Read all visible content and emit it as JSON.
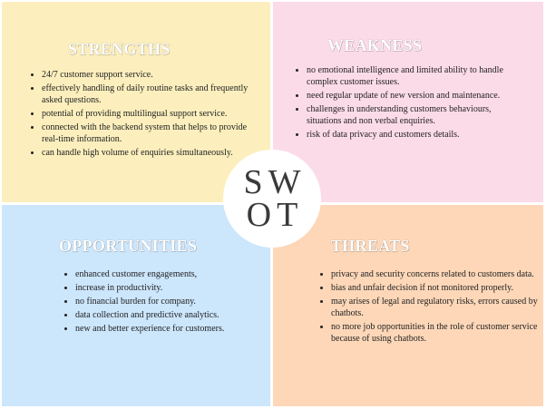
{
  "center": {
    "line1": "SW",
    "line2": "OT"
  },
  "strengths": {
    "title": "STRENGTHS",
    "items": [
      "24/7 customer support service.",
      "effectively handling of daily routine tasks and frequently asked questions.",
      "potential of providing multilingual support service.",
      "connected with the backend system that helps to provide real-time information.",
      "can handle high volume of enquiries simultaneously."
    ]
  },
  "weakness": {
    "title": "WEAKNESS",
    "items": [
      "no emotional intelligence and limited ability to handle complex customer issues.",
      "need regular update of new version and maintenance.",
      "challenges in understanding customers behaviours, situations and non verbal enquiries.",
      "risk of data privacy and customers details."
    ]
  },
  "opportunities": {
    "title": "OPPORTUNITIES",
    "items": [
      "enhanced customer engagements,",
      "increase in productivity.",
      "no financial burden for company.",
      "data collection and predictive analytics.",
      "new and better experience for customers."
    ]
  },
  "threats": {
    "title": "THREATS",
    "items": [
      "privacy and security concerns related to customers data.",
      "bias and unfair decision if not monitored properly.",
      "may arises of legal and regulatory risks, errors caused by chatbots.",
      "no more job opportunities in the role of customer service because of using chatbots."
    ]
  },
  "colors": {
    "strengths_bg": "#fcefbd",
    "weakness_bg": "#fcdbe9",
    "opportunities_bg": "#cce6fc",
    "threats_bg": "#fdd7b8",
    "center_circle": "#ffffff",
    "center_text": "#3a3a3a"
  }
}
